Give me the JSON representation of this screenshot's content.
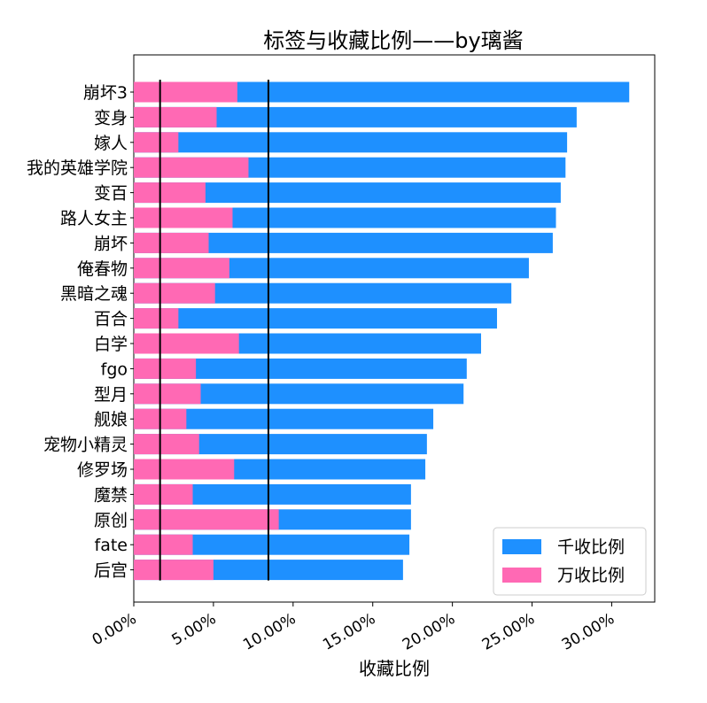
{
  "chart_data": {
    "type": "bar",
    "orientation": "horizontal",
    "title": "标签与收藏比例——by璃酱",
    "xlabel": "收藏比例",
    "ylabel": "",
    "xlim": [
      0,
      0.327
    ],
    "x_ticks": [
      0,
      0.05,
      0.1,
      0.15,
      0.2,
      0.25,
      0.3
    ],
    "x_tick_labels": [
      "0.00%",
      "5.00%",
      "10.00%",
      "15.00%",
      "20.00%",
      "25.00%",
      "30.00%"
    ],
    "categories": [
      "崩坏3",
      "变身",
      "嫁人",
      "我的英雄学院",
      "变百",
      "路人女主",
      "崩坏",
      "俺春物",
      "黑暗之魂",
      "百合",
      "白学",
      "fgo",
      "型月",
      "舰娘",
      "宠物小精灵",
      "修罗场",
      "魔禁",
      "原创",
      "fate",
      "后宫"
    ],
    "series": [
      {
        "name": "千收比例",
        "color": "#1e90ff",
        "values": [
          0.311,
          0.278,
          0.272,
          0.271,
          0.268,
          0.265,
          0.263,
          0.248,
          0.237,
          0.228,
          0.218,
          0.209,
          0.207,
          0.188,
          0.184,
          0.183,
          0.174,
          0.174,
          0.173,
          0.169
        ]
      },
      {
        "name": "万收比例",
        "color": "#ff69b4",
        "values": [
          0.065,
          0.052,
          0.028,
          0.072,
          0.045,
          0.062,
          0.047,
          0.06,
          0.051,
          0.028,
          0.066,
          0.039,
          0.042,
          0.033,
          0.041,
          0.063,
          0.037,
          0.091,
          0.037,
          0.05
        ]
      }
    ],
    "reference_lines_x": [
      0.0165,
      0.0845
    ],
    "legend_position": "lower right",
    "grid": false
  }
}
